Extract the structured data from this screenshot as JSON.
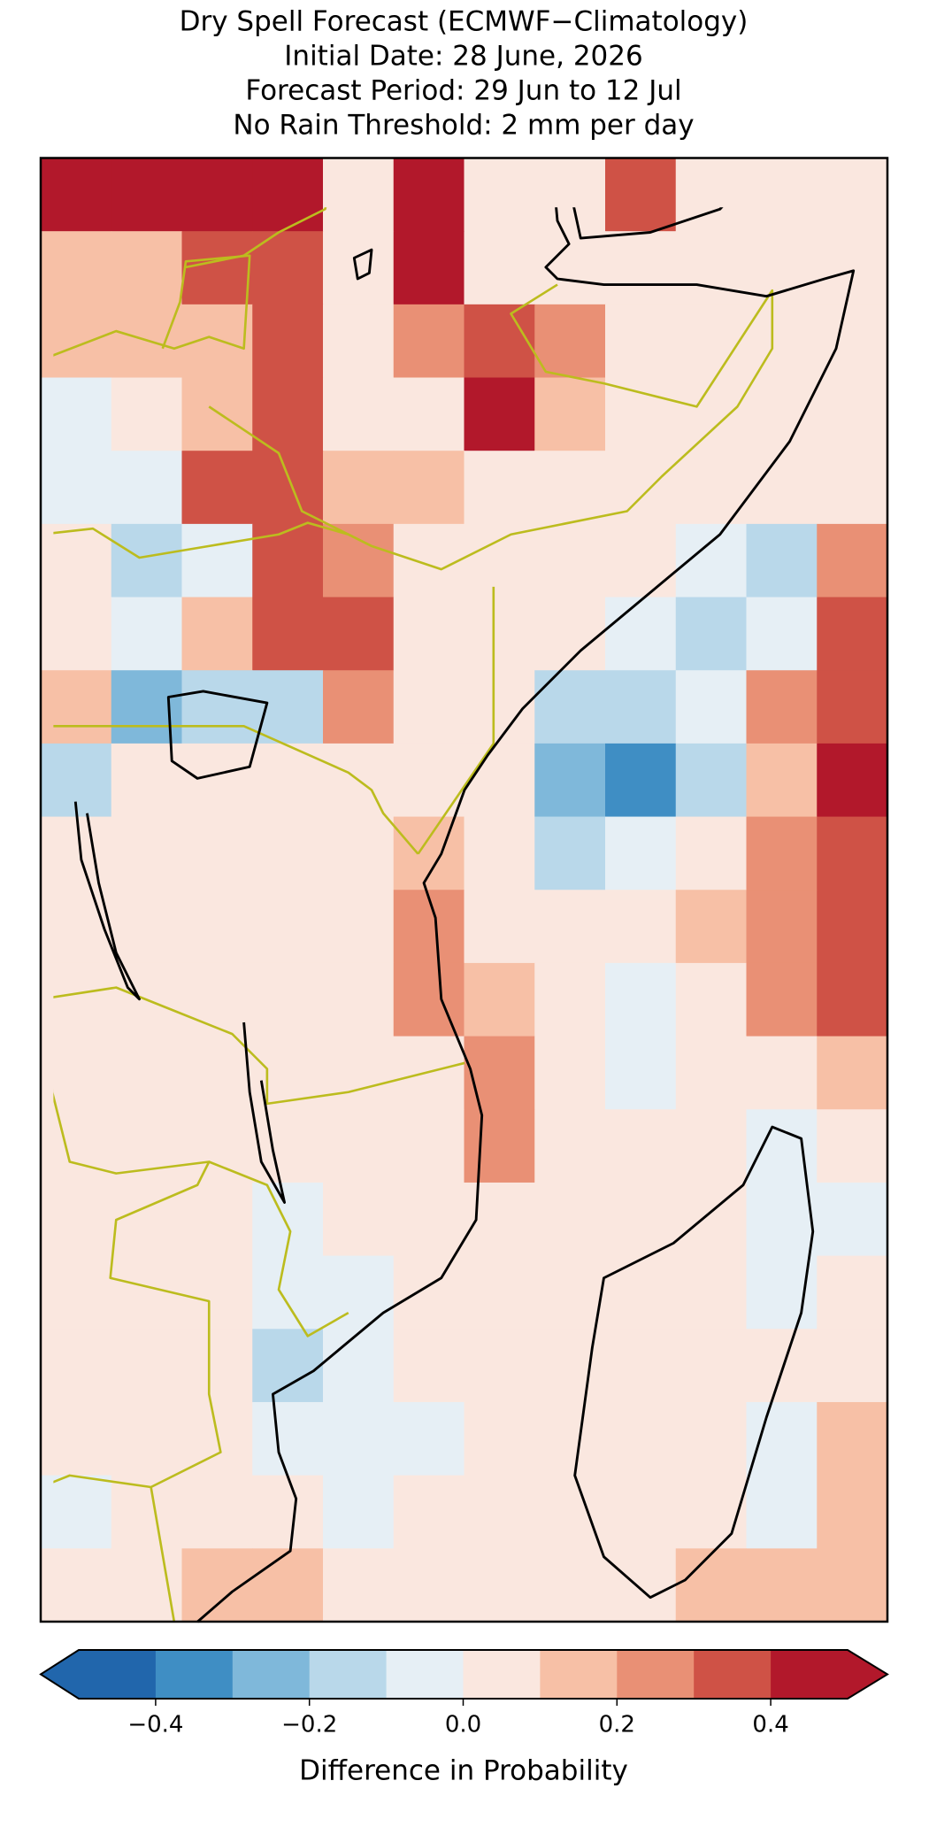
{
  "chart_data": {
    "type": "map",
    "title": [
      "Dry Spell Forecast (ECMWF−Climatology)",
      "Initial Date: 28 June, 2026",
      "Forecast Period: 29 Jun to 12 Jul",
      "No Rain Threshold: 2 mm per day"
    ],
    "grid": [
      [
        0.45,
        0.4,
        0.45,
        0.45,
        0.05,
        0.45,
        0.05,
        0.05,
        0.35,
        0.05,
        0.05,
        0.05
      ],
      [
        0.15,
        0.15,
        0.35,
        0.35,
        0.05,
        0.45,
        0.05,
        0.05,
        0.05,
        0.05,
        0.05,
        0.05
      ],
      [
        0.15,
        0.15,
        0.15,
        0.35,
        0.05,
        0.25,
        0.35,
        0.25,
        0.05,
        0.05,
        0.05,
        0.05
      ],
      [
        -0.05,
        0.05,
        0.15,
        0.35,
        0.05,
        0.05,
        0.45,
        0.15,
        0.05,
        0.05,
        0.05,
        0.05
      ],
      [
        -0.05,
        -0.05,
        0.35,
        0.35,
        0.15,
        0.15,
        0.05,
        0.05,
        0.05,
        0.05,
        0.05,
        0.05
      ],
      [
        0.05,
        -0.15,
        -0.05,
        0.35,
        0.25,
        0.05,
        0.05,
        0.05,
        0.05,
        -0.05,
        -0.15,
        0.25
      ],
      [
        0.05,
        -0.05,
        0.15,
        0.35,
        0.35,
        0.05,
        0.05,
        0.05,
        -0.05,
        -0.15,
        -0.05,
        0.35
      ],
      [
        0.15,
        -0.25,
        -0.15,
        -0.15,
        0.25,
        0.05,
        0.05,
        -0.15,
        -0.15,
        -0.05,
        0.25,
        0.35
      ],
      [
        -0.15,
        0.05,
        0.05,
        0.05,
        0.05,
        0.05,
        0.05,
        -0.25,
        -0.35,
        -0.15,
        0.15,
        0.45
      ],
      [
        0.05,
        0.05,
        0.05,
        0.05,
        0.05,
        0.15,
        0.05,
        -0.15,
        -0.05,
        0.05,
        0.25,
        0.35
      ],
      [
        0.05,
        0.05,
        0.05,
        0.05,
        0.05,
        0.25,
        0.05,
        0.05,
        0.05,
        0.15,
        0.25,
        0.35
      ],
      [
        0.05,
        0.05,
        0.05,
        0.05,
        0.05,
        0.25,
        0.15,
        0.05,
        -0.05,
        0.05,
        0.25,
        0.35
      ],
      [
        0.05,
        0.05,
        0.05,
        0.05,
        0.05,
        0.05,
        0.25,
        0.05,
        -0.05,
        0.05,
        0.05,
        0.15
      ],
      [
        0.05,
        0.05,
        0.05,
        0.05,
        0.05,
        0.05,
        0.25,
        0.05,
        0.05,
        0.05,
        -0.05,
        0.05
      ],
      [
        0.05,
        0.05,
        0.05,
        -0.05,
        0.05,
        0.05,
        0.05,
        0.05,
        0.05,
        0.05,
        -0.05,
        -0.05
      ],
      [
        0.05,
        0.05,
        0.05,
        -0.05,
        -0.05,
        0.05,
        0.05,
        0.05,
        0.05,
        0.05,
        -0.05,
        0.05
      ],
      [
        0.05,
        0.05,
        0.05,
        -0.15,
        -0.05,
        0.05,
        0.05,
        0.05,
        0.05,
        0.05,
        0.05,
        0.05
      ],
      [
        0.05,
        0.05,
        0.05,
        -0.05,
        -0.05,
        -0.05,
        0.05,
        0.05,
        0.05,
        0.05,
        -0.05,
        0.15
      ],
      [
        -0.05,
        0.05,
        0.05,
        0.05,
        -0.05,
        0.05,
        0.05,
        0.05,
        0.05,
        0.05,
        -0.05,
        0.15
      ],
      [
        0.05,
        0.05,
        0.15,
        0.15,
        0.05,
        0.05,
        0.05,
        0.05,
        0.05,
        0.15,
        0.15,
        0.15
      ]
    ],
    "colorbar": {
      "label": "Difference in Probability",
      "bounds": [
        -0.5,
        -0.4,
        -0.3,
        -0.2,
        -0.1,
        0,
        0.1,
        0.2,
        0.3,
        0.4,
        0.5
      ],
      "colors": [
        "#2166ac",
        "#3f8ec4",
        "#7fb8da",
        "#b9d8ea",
        "#e6eff5",
        "#fae7df",
        "#f7c0a6",
        "#e99075",
        "#cf5246",
        "#b2182b"
      ],
      "ticks": [
        {
          "value": -0.4,
          "label": "−0.4"
        },
        {
          "value": -0.2,
          "label": "−0.2"
        },
        {
          "value": 0,
          "label": "0.0"
        },
        {
          "value": 0.2,
          "label": "0.2"
        },
        {
          "value": 0.4,
          "label": "0.4"
        }
      ]
    }
  }
}
